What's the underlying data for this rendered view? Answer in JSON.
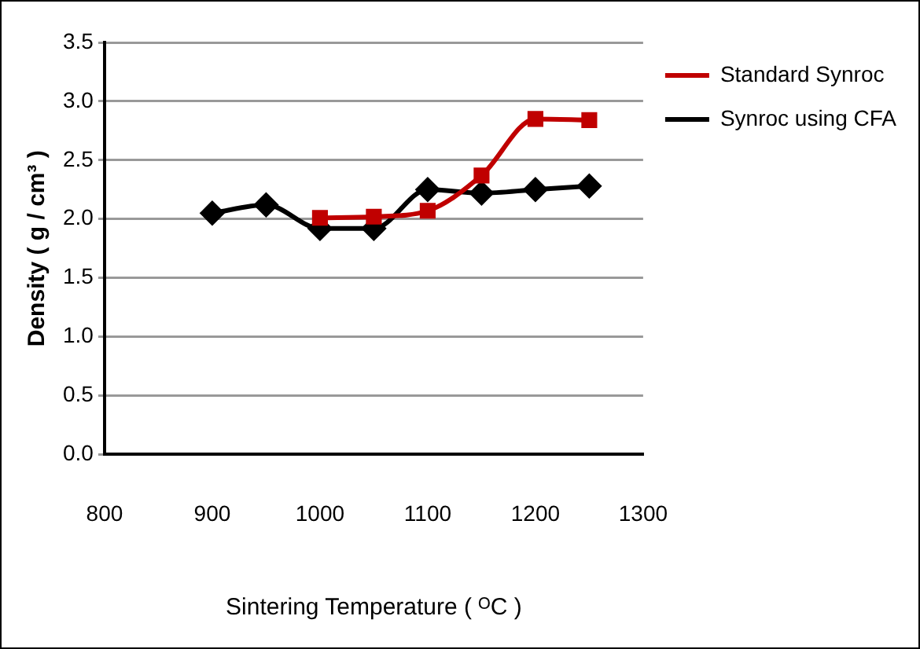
{
  "chart_data": {
    "type": "line",
    "xlabel": "Sintering Temperature ( ᴼC )",
    "ylabel": "Density ( g / cm³ )",
    "xlim": [
      800,
      1300
    ],
    "xticks": [
      800,
      900,
      1000,
      1100,
      1200,
      1300
    ],
    "ylim": [
      0,
      3.5
    ],
    "yticks": [
      {
        "value": 0,
        "label": "0.0"
      },
      {
        "value": 0.5,
        "label": "0.5"
      },
      {
        "value": 1,
        "label": "1.0"
      },
      {
        "value": 1.5,
        "label": "1.5"
      },
      {
        "value": 2,
        "label": "2.0"
      },
      {
        "value": 2.5,
        "label": "2.5"
      },
      {
        "value": 3,
        "label": "3.0"
      },
      {
        "value": 3.5,
        "label": "3.5"
      }
    ],
    "grid": "y",
    "legend": "right",
    "series": [
      {
        "name": "Standard Synroc",
        "color": "#c00000",
        "marker": "square",
        "x": [
          1000,
          1050,
          1100,
          1150,
          1200,
          1250
        ],
        "values": [
          2.01,
          2.02,
          2.07,
          2.37,
          2.85,
          2.84
        ]
      },
      {
        "name": "Synroc using CFA",
        "color": "#000000",
        "marker": "diamond",
        "x": [
          900,
          950,
          1000,
          1050,
          1100,
          1150,
          1200,
          1250
        ],
        "values": [
          2.05,
          2.12,
          1.92,
          1.92,
          2.25,
          2.22,
          2.25,
          2.28
        ]
      }
    ]
  }
}
